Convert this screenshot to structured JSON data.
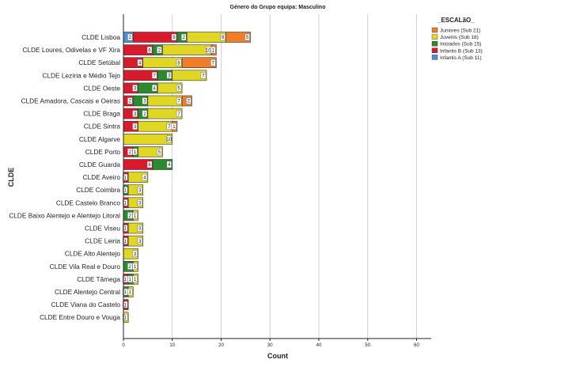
{
  "chart_data": {
    "type": "bar",
    "orientation": "horizontal",
    "stacked": true,
    "title": "Género do Grupo equipa: Masculino",
    "xlabel": "Count",
    "ylabel": "CLDE",
    "xlim": [
      0,
      63
    ],
    "xticks": [
      0,
      10,
      20,
      30,
      40,
      50,
      60
    ],
    "grid": true,
    "legend_title": "_ESCALãO_",
    "legend_position": "top-right",
    "categories": [
      "CLDE Lisboa",
      "CLDE Loures, Odivelas e VF Xira",
      "CLDE Setúbal",
      "CLDE Lezíria e Médio Tejo",
      "CLDE Oeste",
      "CLDE Amadora, Cascais e Oeiras",
      "CLDE Braga",
      "CLDE Sintra",
      "CLDE Algarve",
      "CLDE Porto",
      "CLDE Guarda",
      "CLDE Aveiro",
      "CLDE Coimbra",
      "CLDE Castelo Branco",
      "CLDE Baixo Alentejo e Alentejo Litoral",
      "CLDE Viseu",
      "CLDE Leiria",
      "CLDE Alto Alentejo",
      "CLDE Vila Real e Douro",
      "CLDE Tâmega",
      "CLDE Alentejo Central",
      "CLDE Viana do Castelo",
      "CLDE Entre Douro e Vouga"
    ],
    "stack_order": [
      "Infantis A (Sub 11)",
      "Infantis B (Sub 13)",
      "Iniciados (Sub 15)",
      "Juvenis (Sub 18)",
      "Juniores (Sub 21)"
    ],
    "series": [
      {
        "name": "Juniores (Sub 21)",
        "color": "#f07d28",
        "values": [
          5,
          1,
          7,
          0,
          0,
          2,
          0,
          1,
          0,
          0,
          0,
          0,
          0,
          0,
          0,
          0,
          0,
          0,
          0,
          0,
          0,
          0,
          0
        ]
      },
      {
        "name": "Juvenis (Sub 18)",
        "color": "#e0d624",
        "values": [
          8,
          10,
          8,
          7,
          5,
          7,
          7,
          7,
          10,
          5,
          0,
          4,
          3,
          3,
          1,
          3,
          3,
          3,
          1,
          1,
          1,
          0,
          1
        ]
      },
      {
        "name": "Iniciados (Sub 15)",
        "color": "#2a8b2e",
        "values": [
          2,
          2,
          0,
          3,
          4,
          3,
          2,
          0,
          0,
          1,
          4,
          0,
          1,
          0,
          2,
          0,
          0,
          0,
          2,
          1,
          1,
          0,
          0
        ]
      },
      {
        "name": "Infantis B (Sub 13)",
        "color": "#d9192c",
        "values": [
          9,
          6,
          4,
          7,
          3,
          2,
          3,
          3,
          0,
          2,
          6,
          1,
          0,
          1,
          0,
          1,
          1,
          0,
          0,
          1,
          0,
          1,
          0
        ]
      },
      {
        "name": "Infantis A (Sub 11)",
        "color": "#4a90d9",
        "values": [
          2,
          0,
          0,
          0,
          0,
          0,
          0,
          0,
          0,
          0,
          0,
          0,
          0,
          0,
          0,
          0,
          0,
          0,
          0,
          0,
          0,
          0,
          0
        ]
      }
    ]
  }
}
